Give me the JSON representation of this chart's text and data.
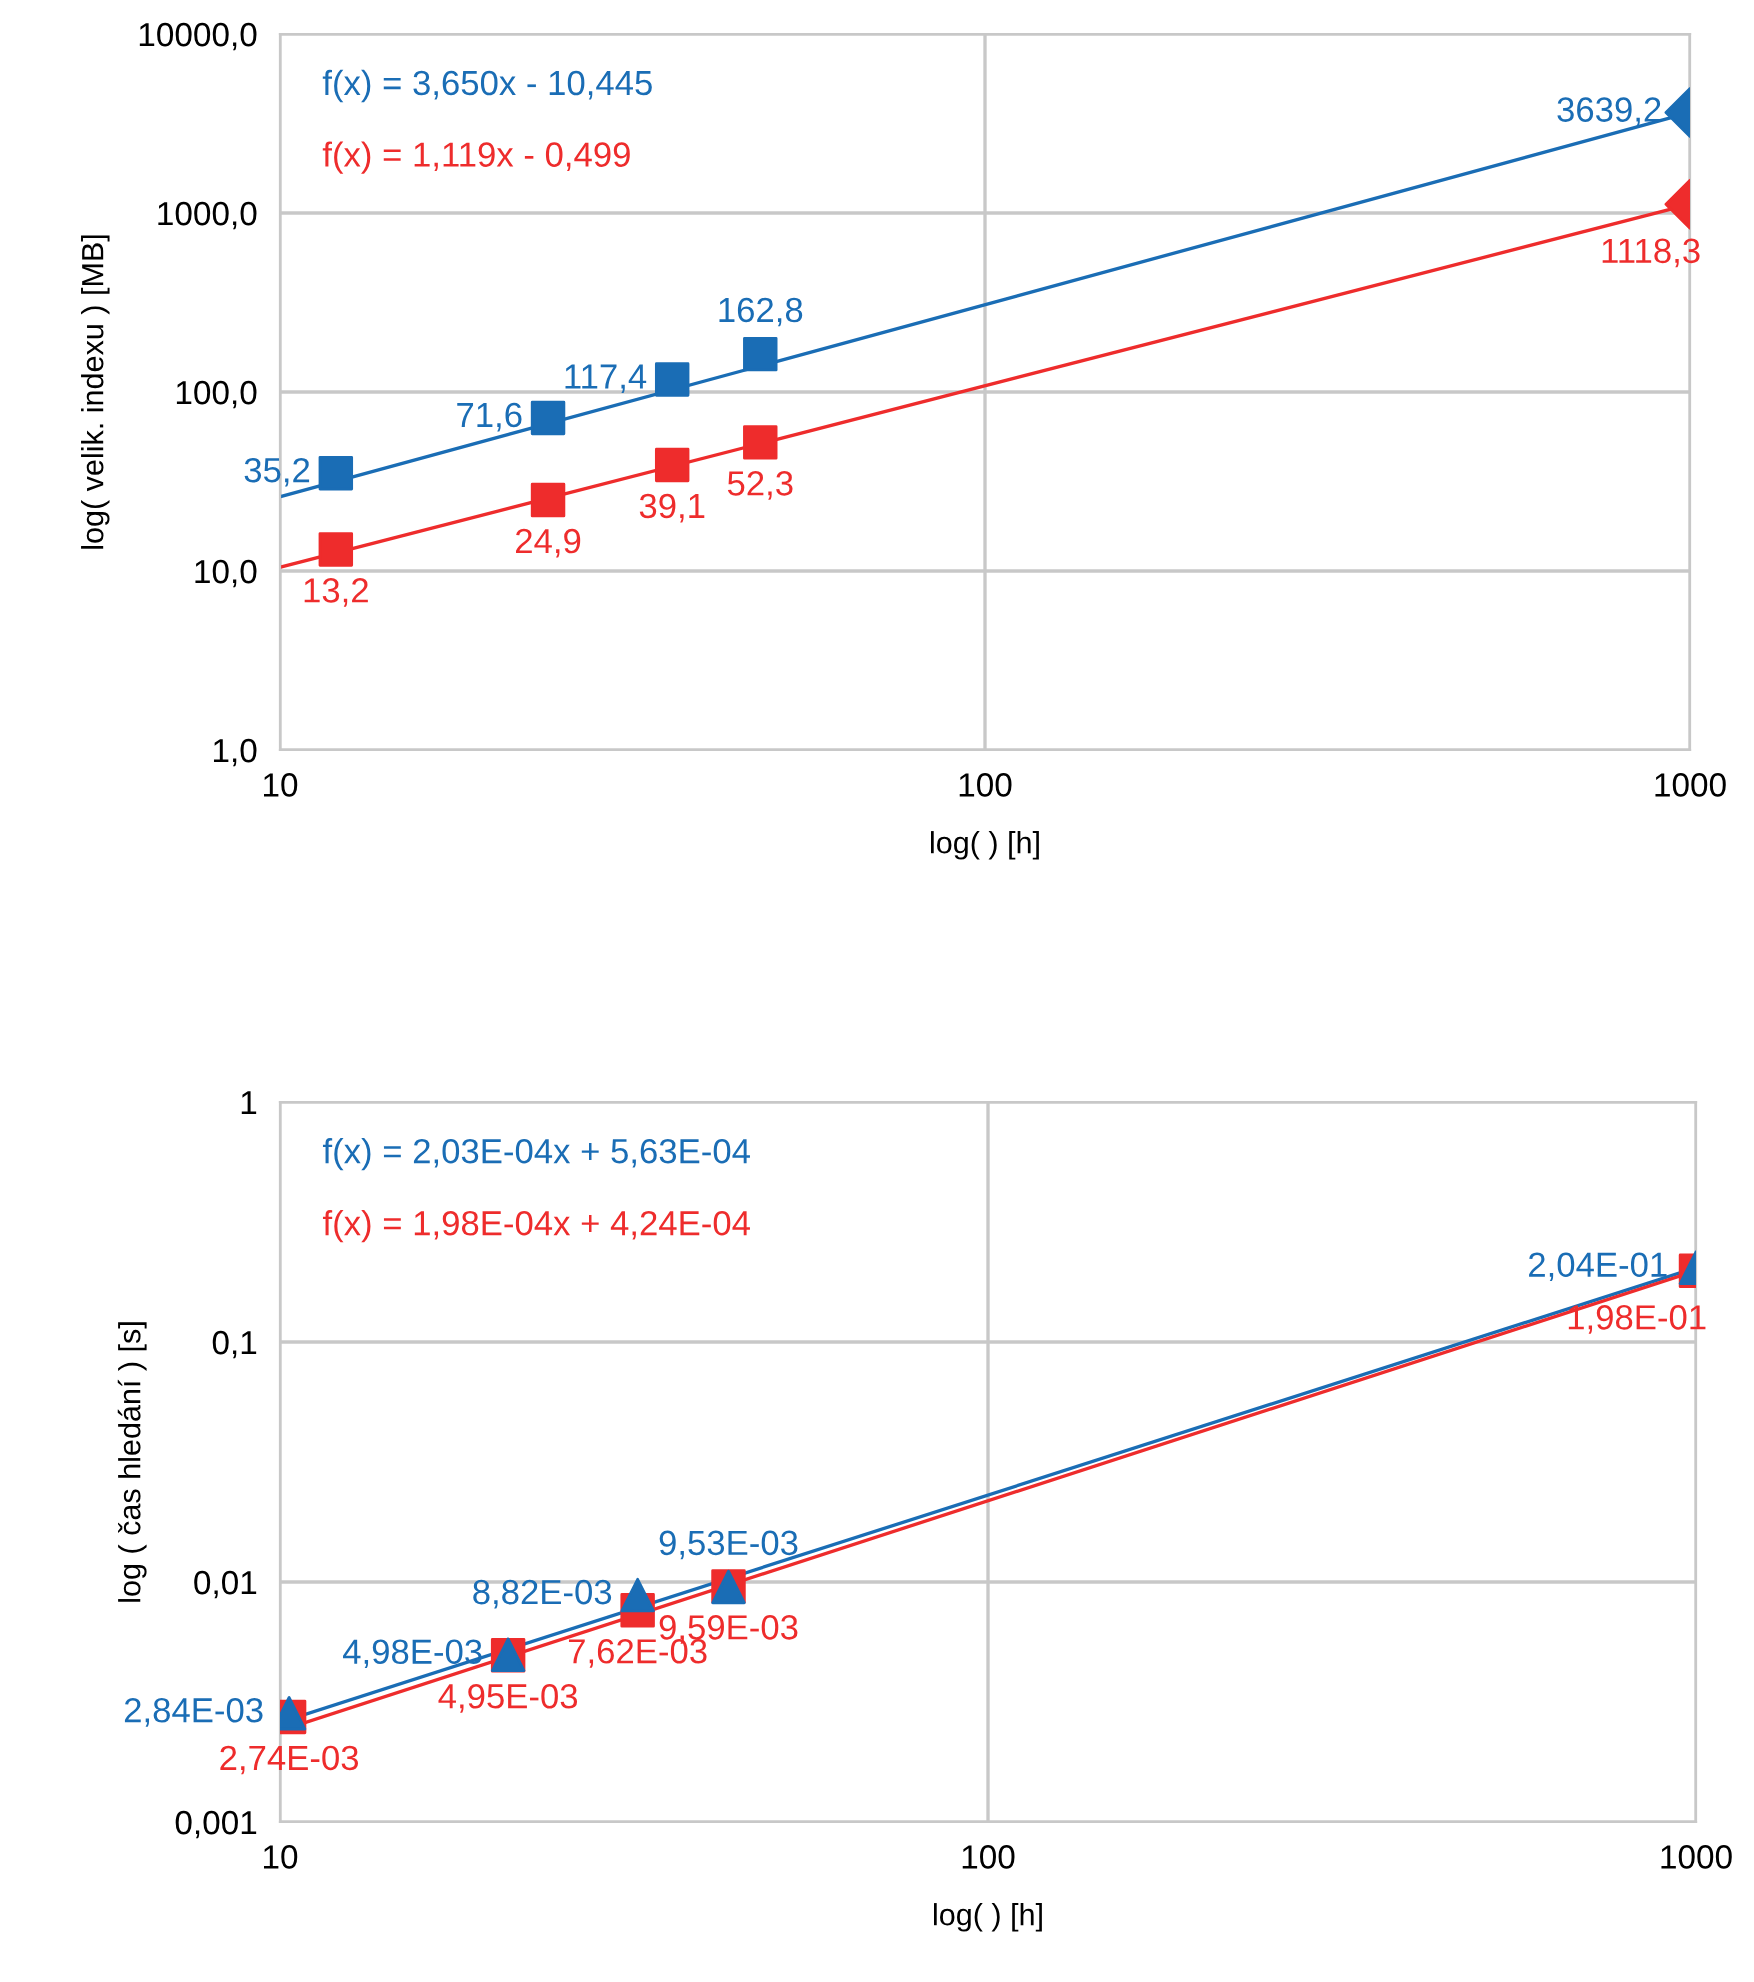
{
  "chart_data": [
    {
      "type": "scatter",
      "xlabel": "log( ) [h]",
      "ylabel": "log( velik. indexu ) [MB]",
      "log": "xy",
      "grid": true,
      "xlim": [
        10,
        1000
      ],
      "xticks": [
        10,
        100,
        1000
      ],
      "ylim": [
        1,
        10000
      ],
      "yticks": [
        {
          "value": 1,
          "label": "1,0"
        },
        {
          "value": 10,
          "label": "10,0"
        },
        {
          "value": 100,
          "label": "100,0"
        },
        {
          "value": 1000,
          "label": "1000,0"
        },
        {
          "value": 10000,
          "label": "10000,0"
        }
      ],
      "annotations": [
        "f(x) = 3,650x - 10,445",
        "f(x) = 1,119x - 0,499"
      ],
      "series": [
        {
          "type": "line",
          "marker": "none",
          "color": "#1a6db5",
          "x": [
            10,
            1000
          ],
          "values": [
            26,
            3640
          ]
        },
        {
          "type": "line",
          "marker": "none",
          "color": "#ee2c2c",
          "x": [
            10,
            1000
          ],
          "values": [
            10.5,
            1118
          ]
        },
        {
          "marker": "square",
          "color": "#1a6db5",
          "x": [
            12,
            24,
            36,
            48
          ],
          "values": [
            35.2,
            71.6,
            117.4,
            162.8
          ],
          "value_labels": [
            "35,2",
            "71,6",
            "117,4",
            "162,8"
          ]
        },
        {
          "marker": "square",
          "color": "#ee2c2c",
          "x": [
            12,
            24,
            36,
            48
          ],
          "values": [
            13.2,
            24.9,
            39.1,
            52.3
          ],
          "value_labels": [
            "13,2",
            "24,9",
            "39,1",
            "52,3"
          ]
        },
        {
          "marker": "diamond",
          "color": "#1a6db5",
          "x": [
            1000
          ],
          "values": [
            3639.2
          ],
          "value_labels": [
            "3639,2"
          ]
        },
        {
          "marker": "diamond",
          "color": "#ee2c2c",
          "x": [
            1000
          ],
          "values": [
            1118.3
          ],
          "value_labels": [
            "1118,3"
          ]
        }
      ]
    },
    {
      "type": "scatter",
      "xlabel": "log( ) [h]",
      "ylabel": "log ( čas hledání ) [s]",
      "log": "xy",
      "grid": true,
      "xlim": [
        10,
        1000
      ],
      "xticks": [
        10,
        100,
        1000
      ],
      "ylim": [
        0.001,
        1
      ],
      "yticks": [
        {
          "value": 0.001,
          "label": "0,001"
        },
        {
          "value": 0.01,
          "label": "0,01"
        },
        {
          "value": 0.1,
          "label": "0,1"
        },
        {
          "value": 1,
          "label": "1"
        }
      ],
      "annotations": [
        "f(x) = 2,03E-04x + 5,63E-04",
        "f(x) = 1,98E-04x + 4,24E-04"
      ],
      "series": [
        {
          "type": "line",
          "marker": "none",
          "color": "#1a6db5",
          "x": [
            10,
            1000
          ],
          "values": [
            0.0026,
            0.204
          ]
        },
        {
          "type": "line",
          "marker": "none",
          "color": "#ee2c2c",
          "x": [
            10,
            1000
          ],
          "values": [
            0.0024,
            0.198
          ]
        },
        {
          "marker": "square",
          "color": "#ee2c2c",
          "x": [
            10.3,
            21,
            32,
            43,
            1000
          ],
          "values": [
            0.00274,
            0.00495,
            0.00762,
            0.00959,
            0.198
          ],
          "value_labels": [
            "2,74E-03",
            "4,95E-03",
            "7,62E-03",
            "9,59E-03",
            "1,98E-01"
          ]
        },
        {
          "marker": "triangle",
          "color": "#1a6db5",
          "x": [
            10.3,
            21,
            32,
            43,
            1000
          ],
          "values": [
            0.00284,
            0.00498,
            0.00882,
            0.00953,
            0.204
          ],
          "value_labels": [
            "2,84E-03",
            "4,98E-03",
            "8,82E-03",
            "9,53E-03",
            "2,04E-01"
          ]
        }
      ]
    }
  ]
}
